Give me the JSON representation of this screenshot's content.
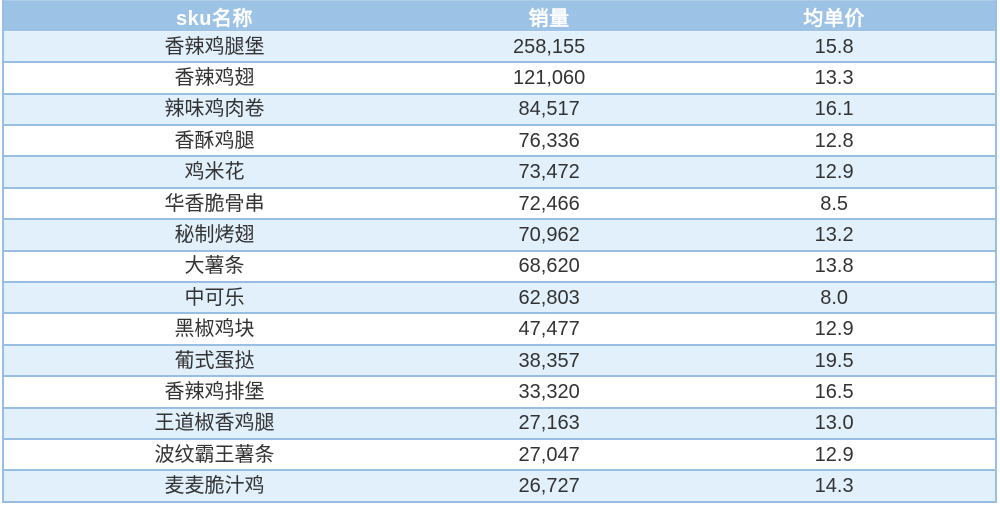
{
  "chart_data": {
    "type": "table",
    "columns": [
      "sku名称",
      "销量",
      "均单价"
    ],
    "rows": [
      {
        "sku": "香辣鸡腿堡",
        "sales": "258,155",
        "avg_price": "15.8"
      },
      {
        "sku": "香辣鸡翅",
        "sales": "121,060",
        "avg_price": "13.3"
      },
      {
        "sku": "辣味鸡肉卷",
        "sales": "84,517",
        "avg_price": "16.1"
      },
      {
        "sku": "香酥鸡腿",
        "sales": "76,336",
        "avg_price": "12.8"
      },
      {
        "sku": "鸡米花",
        "sales": "73,472",
        "avg_price": "12.9"
      },
      {
        "sku": "华香脆骨串",
        "sales": "72,466",
        "avg_price": "8.5"
      },
      {
        "sku": "秘制烤翅",
        "sales": "70,962",
        "avg_price": "13.2"
      },
      {
        "sku": "大薯条",
        "sales": "68,620",
        "avg_price": "13.8"
      },
      {
        "sku": "中可乐",
        "sales": "62,803",
        "avg_price": "8.0"
      },
      {
        "sku": "黑椒鸡块",
        "sales": "47,477",
        "avg_price": "12.9"
      },
      {
        "sku": "葡式蛋挞",
        "sales": "38,357",
        "avg_price": "19.5"
      },
      {
        "sku": "香辣鸡排堡",
        "sales": "33,320",
        "avg_price": "16.5"
      },
      {
        "sku": "王道椒香鸡腿",
        "sales": "27,163",
        "avg_price": "13.0"
      },
      {
        "sku": "波纹霸王薯条",
        "sales": "27,047",
        "avg_price": "12.9"
      },
      {
        "sku": "麦麦脆汁鸡",
        "sales": "26,727",
        "avg_price": "14.3"
      }
    ],
    "layout": {
      "grid": "horizontal-rules-only",
      "row_striping": "odd-rows-light-blue"
    }
  },
  "colors": {
    "header_bg": "#9cc3e6",
    "header_text": "#ffffff",
    "row_stripe_bg": "#e2f0fb",
    "row_plain_bg": "#ffffff",
    "row_border": "#98bfe3",
    "body_text": "#333333"
  }
}
